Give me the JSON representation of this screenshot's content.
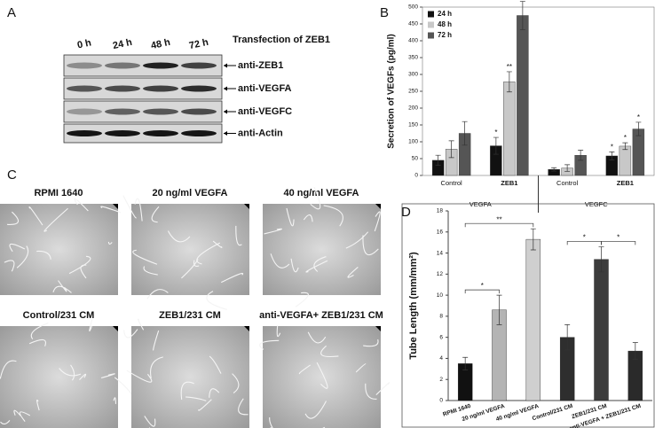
{
  "panel_labels": [
    "A",
    "B",
    "C",
    "D"
  ],
  "western_blot": {
    "lanes": [
      "0 h",
      "24 h",
      "48 h",
      "72 h"
    ],
    "heading": "Transfection of ZEB1",
    "antibodies": [
      "anti-ZEB1",
      "anti-VEGFA",
      "anti-VEGFC",
      "anti-Actin"
    ]
  },
  "micrographs": [
    "RPMI 1640",
    "20 ng/ml VEGFA",
    "40 ng/ml VEGFA",
    "Control/231 CM",
    "ZEB1/231 CM",
    "anti-VEGFA+ ZEB1/231 CM"
  ],
  "chart_data": [
    {
      "type": "grouped-bar",
      "y_label": "Secretion of VEGFs (pg/ml)",
      "groups": [
        {
          "name": "VEGFA",
          "categories": [
            "Control",
            "ZEB1"
          ]
        },
        {
          "name": "VEGFC",
          "categories": [
            "Control",
            "ZEB1"
          ]
        }
      ],
      "series": [
        {
          "name": "24 h",
          "color": "#111111",
          "values": [
            45,
            88,
            18,
            58
          ],
          "errors": [
            15,
            25,
            5,
            12
          ],
          "significance": [
            null,
            "*",
            null,
            "*"
          ]
        },
        {
          "name": "48 h",
          "color": "#c8c8c8",
          "values": [
            78,
            278,
            22,
            87
          ],
          "errors": [
            25,
            30,
            10,
            10
          ],
          "significance": [
            null,
            "**",
            null,
            "*"
          ]
        },
        {
          "name": "72 h",
          "color": "#555555",
          "values": [
            125,
            475,
            60,
            138
          ],
          "errors": [
            35,
            42,
            15,
            20
          ],
          "significance": [
            null,
            "**",
            null,
            "*"
          ]
        }
      ],
      "ylim": [
        0,
        500
      ],
      "yticks": [
        0,
        50,
        100,
        150,
        200,
        250,
        300,
        350,
        400,
        450,
        500
      ],
      "legend": "top-left"
    },
    {
      "type": "bar",
      "y_label": "Tube Length (mm/mm²)",
      "categories": [
        "RPMI 1640",
        "20 ng/ml VEGFA",
        "40 ng/ml VEGFA",
        "Control/231 CM",
        "ZEB1/231 CM",
        "anti-VEGFA + ZEB1/231 CM"
      ],
      "values": [
        3.5,
        8.6,
        15.3,
        6.0,
        13.4,
        4.7
      ],
      "errors": [
        0.6,
        1.4,
        1.0,
        1.2,
        1.2,
        0.8
      ],
      "colors": [
        "#111111",
        "#b4b4b4",
        "#cfcfcf",
        "#2e2e2e",
        "#3c3c3c",
        "#2a2a2a"
      ],
      "comparisons": [
        {
          "between": [
            0,
            1
          ],
          "label": "*"
        },
        {
          "between": [
            0,
            2
          ],
          "label": "**"
        },
        {
          "between": [
            3,
            4
          ],
          "label": "*"
        },
        {
          "between": [
            4,
            5
          ],
          "label": "*"
        }
      ],
      "ylim": [
        0,
        18
      ],
      "yticks": [
        0,
        2,
        4,
        6,
        8,
        10,
        12,
        14,
        16,
        18
      ]
    }
  ]
}
